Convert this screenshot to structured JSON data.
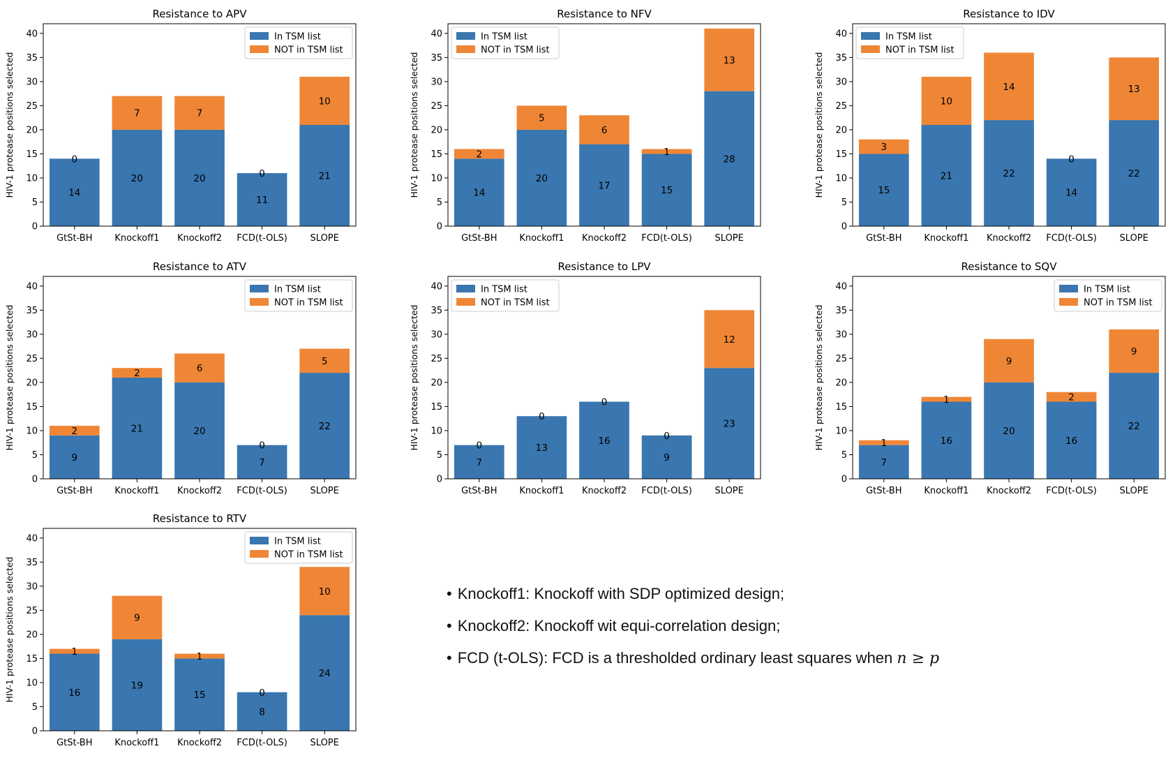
{
  "colors": {
    "in_tsm": "#3a76af",
    "not_in_tsm": "#ef8636"
  },
  "chart_data": [
    {
      "type": "bar",
      "stacked": true,
      "title": "Resistance to APV",
      "ylabel": "HIV-1 protease positions selected",
      "xlabel": "",
      "ylim": [
        0,
        42
      ],
      "yticks": [
        0,
        5,
        10,
        15,
        20,
        25,
        30,
        35,
        40
      ],
      "grid": false,
      "legend_position": "top-right",
      "categories": [
        "GtSt-BH",
        "Knockoff1",
        "Knockoff2",
        "FCD(t-OLS)",
        "SLOPE"
      ],
      "series": [
        {
          "name": "In TSM list",
          "values": [
            14,
            20,
            20,
            11,
            21
          ]
        },
        {
          "name": "NOT in TSM list",
          "values": [
            0,
            7,
            7,
            0,
            10
          ]
        }
      ]
    },
    {
      "type": "bar",
      "stacked": true,
      "title": "Resistance to NFV",
      "ylabel": "HIV-1 protease positions selected",
      "xlabel": "",
      "ylim": [
        0,
        42
      ],
      "yticks": [
        0,
        5,
        10,
        15,
        20,
        25,
        30,
        35,
        40
      ],
      "grid": false,
      "legend_position": "top-left",
      "categories": [
        "GtSt-BH",
        "Knockoff1",
        "Knockoff2",
        "FCD(t-OLS)",
        "SLOPE"
      ],
      "series": [
        {
          "name": "In TSM list",
          "values": [
            14,
            20,
            17,
            15,
            28
          ]
        },
        {
          "name": "NOT in TSM list",
          "values": [
            2,
            5,
            6,
            1,
            13
          ]
        }
      ]
    },
    {
      "type": "bar",
      "stacked": true,
      "title": "Resistance to IDV",
      "ylabel": "HIV-1 protease positions selected",
      "xlabel": "",
      "ylim": [
        0,
        42
      ],
      "yticks": [
        0,
        5,
        10,
        15,
        20,
        25,
        30,
        35,
        40
      ],
      "grid": false,
      "legend_position": "top-left",
      "categories": [
        "GtSt-BH",
        "Knockoff1",
        "Knockoff2",
        "FCD(t-OLS)",
        "SLOPE"
      ],
      "series": [
        {
          "name": "In TSM list",
          "values": [
            15,
            21,
            22,
            14,
            22
          ]
        },
        {
          "name": "NOT in TSM list",
          "values": [
            3,
            10,
            14,
            0,
            13
          ]
        }
      ]
    },
    {
      "type": "bar",
      "stacked": true,
      "title": "Resistance to ATV",
      "ylabel": "HIV-1 protease positions selected",
      "xlabel": "",
      "ylim": [
        0,
        42
      ],
      "yticks": [
        0,
        5,
        10,
        15,
        20,
        25,
        30,
        35,
        40
      ],
      "grid": false,
      "legend_position": "top-right",
      "categories": [
        "GtSt-BH",
        "Knockoff1",
        "Knockoff2",
        "FCD(t-OLS)",
        "SLOPE"
      ],
      "series": [
        {
          "name": "In TSM list",
          "values": [
            9,
            21,
            20,
            7,
            22
          ]
        },
        {
          "name": "NOT in TSM list",
          "values": [
            2,
            2,
            6,
            0,
            5
          ]
        }
      ]
    },
    {
      "type": "bar",
      "stacked": true,
      "title": "Resistance to LPV",
      "ylabel": "HIV-1 protease positions selected",
      "xlabel": "",
      "ylim": [
        0,
        42
      ],
      "yticks": [
        0,
        5,
        10,
        15,
        20,
        25,
        30,
        35,
        40
      ],
      "grid": false,
      "legend_position": "top-left",
      "categories": [
        "GtSt-BH",
        "Knockoff1",
        "Knockoff2",
        "FCD(t-OLS)",
        "SLOPE"
      ],
      "series": [
        {
          "name": "In TSM list",
          "values": [
            7,
            13,
            16,
            9,
            23
          ]
        },
        {
          "name": "NOT in TSM list",
          "values": [
            0,
            0,
            0,
            0,
            12
          ]
        }
      ]
    },
    {
      "type": "bar",
      "stacked": true,
      "title": "Resistance to SQV",
      "ylabel": "HIV-1 protease positions selected",
      "xlabel": "",
      "ylim": [
        0,
        42
      ],
      "yticks": [
        0,
        5,
        10,
        15,
        20,
        25,
        30,
        35,
        40
      ],
      "grid": false,
      "legend_position": "top-right",
      "categories": [
        "GtSt-BH",
        "Knockoff1",
        "Knockoff2",
        "FCD(t-OLS)",
        "SLOPE"
      ],
      "series": [
        {
          "name": "In TSM list",
          "values": [
            7,
            16,
            20,
            16,
            22
          ]
        },
        {
          "name": "NOT in TSM list",
          "values": [
            1,
            1,
            9,
            2,
            9
          ]
        }
      ]
    },
    {
      "type": "bar",
      "stacked": true,
      "title": "Resistance to RTV",
      "ylabel": "HIV-1 protease positions selected",
      "xlabel": "",
      "ylim": [
        0,
        42
      ],
      "yticks": [
        0,
        5,
        10,
        15,
        20,
        25,
        30,
        35,
        40
      ],
      "grid": false,
      "legend_position": "top-right",
      "categories": [
        "GtSt-BH",
        "Knockoff1",
        "Knockoff2",
        "FCD(t-OLS)",
        "SLOPE"
      ],
      "series": [
        {
          "name": "In TSM list",
          "values": [
            16,
            19,
            15,
            8,
            24
          ]
        },
        {
          "name": "NOT in TSM list",
          "values": [
            1,
            9,
            1,
            0,
            10
          ]
        }
      ]
    }
  ],
  "notes": {
    "knockoff1": "Knockoff1: Knockoff with SDP optimized design;",
    "knockoff2": "Knockoff2: Knockoff wit equi-correlation design;",
    "fcd": "FCD (t-OLS): FCD is a thresholded ordinary least squares when",
    "fcd_math": "n ≥ p"
  }
}
